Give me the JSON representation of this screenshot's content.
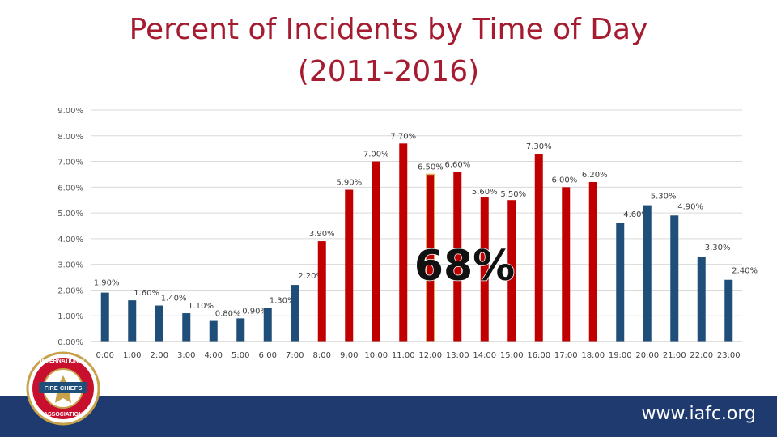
{
  "title": {
    "line1": "Percent of Incidents by Time of Day",
    "line2": "(2011-2016)"
  },
  "footer": {
    "url": "www.iafc.org"
  },
  "logo": {
    "words": [
      "INTERNATIONAL",
      "FIRE CHIEFS",
      "ASSOCIATION"
    ]
  },
  "colors": {
    "red": "#c00000",
    "blue": "#1f4e79",
    "title": "#a51c30",
    "footer": "#1e3a6e"
  },
  "chart_data": {
    "type": "bar",
    "title": "Percent of Incidents by Time of Day (2011-2016)",
    "xlabel": "",
    "ylabel": "",
    "ylim": [
      0,
      9
    ],
    "yticks": [
      "0.00%",
      "1.00%",
      "2.00%",
      "3.00%",
      "4.00%",
      "5.00%",
      "6.00%",
      "7.00%",
      "8.00%",
      "9.00%"
    ],
    "categories": [
      "0:00",
      "1:00",
      "2:00",
      "3:00",
      "4:00",
      "5:00",
      "6:00",
      "7:00",
      "8:00",
      "9:00",
      "10:00",
      "11:00",
      "12:00",
      "13:00",
      "14:00",
      "15:00",
      "16:00",
      "17:00",
      "18:00",
      "19:00",
      "20:00",
      "21:00",
      "22:00",
      "23:00"
    ],
    "values": [
      1.9,
      1.6,
      1.4,
      1.1,
      0.8,
      0.9,
      1.3,
      2.2,
      3.9,
      5.9,
      7.0,
      7.7,
      6.5,
      6.6,
      5.6,
      5.5,
      7.3,
      6.0,
      6.2,
      4.6,
      5.3,
      4.9,
      3.3,
      2.4
    ],
    "labels": [
      "1.90%",
      "1.60%",
      "1.40%",
      "1.10%",
      "0.80%",
      "0.90%",
      "1.30%",
      "2.20%",
      "3.90%",
      "5.90%",
      "7.00%",
      "7.70%",
      "6.50%",
      "6.60%",
      "5.60%",
      "5.50%",
      "7.30%",
      "6.00%",
      "6.20%",
      "4.60%",
      "5.30%",
      "4.90%",
      "3.30%",
      "2.40%"
    ],
    "highlighted_range": [
      "8:00",
      "18:00"
    ],
    "annotation": "68%"
  }
}
